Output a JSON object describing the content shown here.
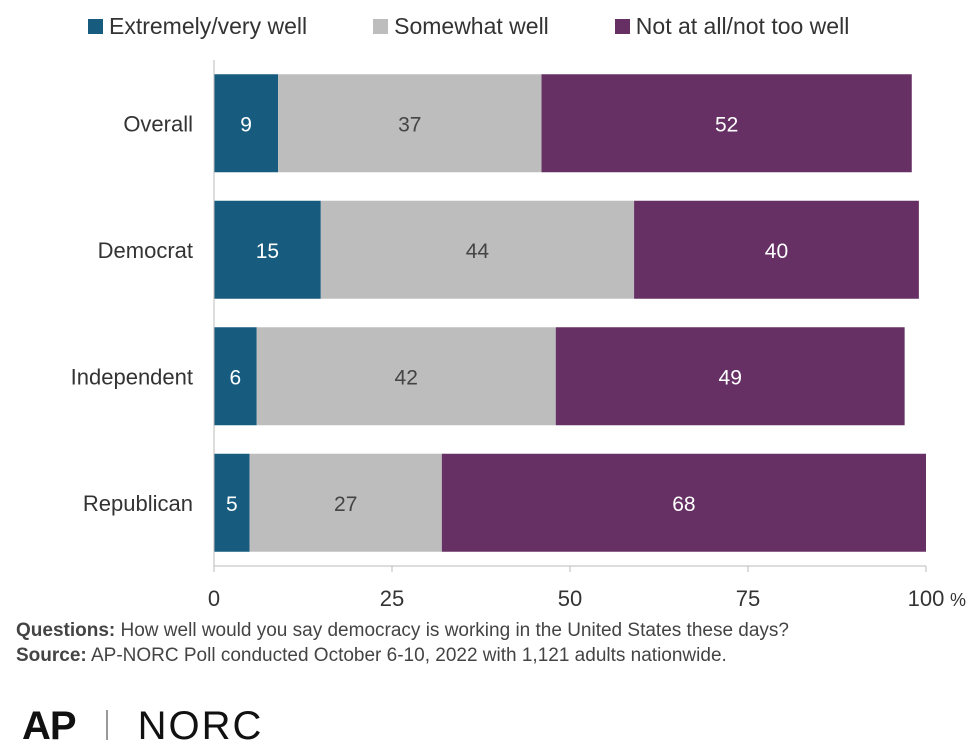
{
  "legend": [
    {
      "label": "Extremely/very well",
      "color": "#175c7e"
    },
    {
      "label": "Somewhat well",
      "color": "#bdbdbd"
    },
    {
      "label": "Not at all/not too well",
      "color": "#663064"
    }
  ],
  "chart_data": {
    "type": "bar",
    "orientation": "horizontal",
    "stacked": true,
    "categories": [
      "Overall",
      "Democrat",
      "Independent",
      "Republican"
    ],
    "series": [
      {
        "name": "Extremely/very well",
        "color": "#175c7e",
        "values": [
          9,
          15,
          6,
          5
        ]
      },
      {
        "name": "Somewhat well",
        "color": "#bdbdbd",
        "values": [
          37,
          44,
          42,
          27
        ]
      },
      {
        "name": "Not at all/not too well",
        "color": "#663064",
        "values": [
          52,
          40,
          49,
          68
        ]
      }
    ],
    "xlim": [
      0,
      100
    ],
    "xticks": [
      "0",
      "25",
      "50",
      "75",
      "100"
    ],
    "x_unit": "%",
    "legend_position": "top",
    "grid": false
  },
  "footer": {
    "questions_label": "Questions:",
    "questions_text": "How well would you say democracy is working in the United States these days?",
    "source_label": "Source:",
    "source_text": "AP-NORC Poll conducted October 6-10, 2022 with 1,121 adults nationwide."
  },
  "logos": {
    "ap": "AP",
    "norc": "NORC"
  }
}
